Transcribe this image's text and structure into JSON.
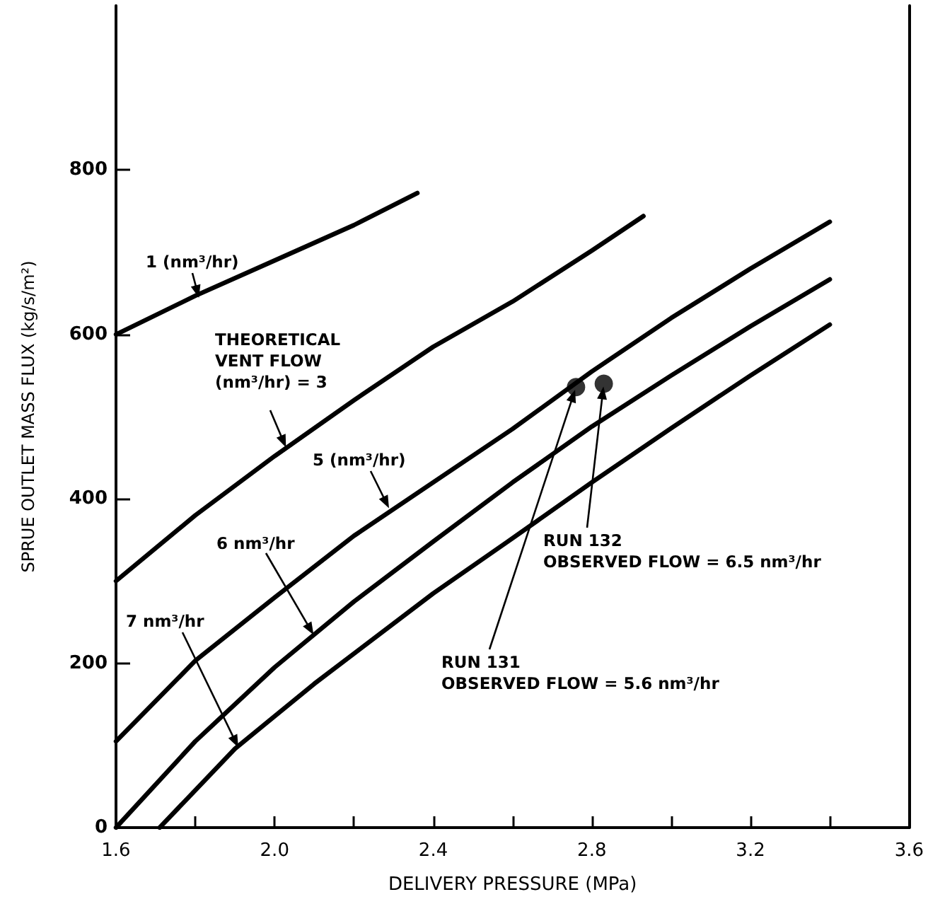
{
  "chart_data": {
    "type": "line",
    "xlabel": "DELIVERY PRESSURE (MPa)",
    "ylabel": "SPRUE OUTLET MASS FLUX (kg/s/m²)",
    "xlim": [
      1.6,
      3.6
    ],
    "xticks": [
      1.6,
      {
        "value": 1.8,
        "label": null
      },
      {
        "value": 2.0,
        "label": "2.0"
      },
      {
        "value": 2.2,
        "label": null
      },
      2.4,
      {
        "value": 2.6,
        "label": null
      },
      2.8,
      {
        "value": 3.0,
        "label": null
      },
      3.2,
      {
        "value": 3.4,
        "label": null
      },
      3.6
    ],
    "ylim": [
      0,
      1000
    ],
    "yticks": [
      0,
      200,
      400,
      600,
      800
    ],
    "grid": false,
    "marker": "none",
    "line_style": "solid",
    "series": [
      {
        "color": "#000000",
        "x": [
          1.6,
          1.8,
          2.0,
          2.2,
          2.36
        ],
        "values": [
          600,
          647,
          690,
          733,
          772
        ]
      },
      {
        "color": "#000000",
        "x": [
          1.6,
          1.8,
          2.0,
          2.2,
          2.4,
          2.6,
          2.8,
          2.93
        ],
        "values": [
          300,
          380,
          452,
          520,
          585,
          640,
          702,
          744
        ]
      },
      {
        "color": "#000000",
        "x": [
          1.6,
          1.8,
          2.0,
          2.2,
          2.4,
          2.6,
          2.8,
          3.0,
          3.2,
          3.4
        ],
        "values": [
          105,
          203,
          280,
          355,
          420,
          485,
          555,
          620,
          680,
          737
        ]
      },
      {
        "color": "#000000",
        "x": [
          1.6,
          1.8,
          2.0,
          2.2,
          2.4,
          2.6,
          2.8,
          3.0,
          3.2,
          3.4
        ],
        "values": [
          0,
          105,
          195,
          275,
          348,
          420,
          488,
          550,
          610,
          667
        ]
      },
      {
        "color": "#000000",
        "x": [
          1.71,
          1.9,
          2.1,
          2.4,
          2.6,
          2.8,
          3.0,
          3.2,
          3.4
        ],
        "values": [
          0,
          96,
          175,
          285,
          352,
          420,
          486,
          550,
          612
        ]
      },
      {
        "type": "scatter",
        "marker": "circle",
        "color": "#000000",
        "x": [
          2.76,
          2.83
        ],
        "values": [
          536,
          540
        ]
      }
    ],
    "annotations": [
      {
        "text": "1 (nm³/hr)",
        "x": 1.81,
        "y": 643
      },
      {
        "text": "THEORETICAL\nVENT FLOW\n(nm³/hr) = 3",
        "x": 2.03,
        "y": 461
      },
      {
        "text": "5 (nm³/hr)",
        "x": 2.29,
        "y": 387
      },
      {
        "text": "6 nm³/hr",
        "x": 2.1,
        "y": 233
      },
      {
        "text": "7 nm³/hr",
        "x": 1.91,
        "y": 96
      },
      {
        "text": "RUN 131\nOBSERVED FLOW = 5.6 nm³/hr",
        "x": 2.76,
        "y": 536
      },
      {
        "text": "RUN 132\nOBSERVED FLOW = 6.5 nm³/hr",
        "x": 2.83,
        "y": 540
      }
    ]
  }
}
